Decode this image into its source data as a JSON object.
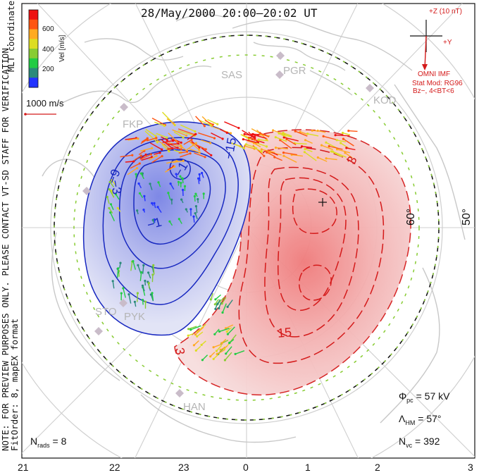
{
  "title": "28/May/2000 20:00–20:02 UT",
  "colorbar": {
    "ticks": [
      "600",
      "400",
      "200"
    ],
    "label": "Vel [m/s]",
    "colors": [
      "#2233ff",
      "#2a8a7a",
      "#22cc44",
      "#88cc33",
      "#dddd22",
      "#ffaa22",
      "#ff5511",
      "#ee1111"
    ]
  },
  "coord_note": "MLT coordinates",
  "scale_vector": "1000 m/s",
  "imf": {
    "z_label": "+Z (10 nT)",
    "y_label": "+Y",
    "source": "OMNI IMF",
    "model": "Stat Mod: RG96",
    "condition": "Bz−, 4<BT<6"
  },
  "left_notes": {
    "preview": "NOTE: FOR PREVIEW PURPOSES ONLY. PLEASE CONTACT VT-SD STAFF FOR VERIFICATION.",
    "fitorder": "FitOrder: 8, mapEX format"
  },
  "stations": [
    "SAS",
    "PGR",
    "KOD",
    "FKP",
    "STO",
    "PYK",
    "HAN"
  ],
  "latitude_labels": [
    "60°",
    "50°"
  ],
  "contour_labels": {
    "negative": [
      "−3",
      "−9",
      "−1",
      "−15",
      "−1"
    ],
    "positive": [
      "3",
      "15",
      "3"
    ]
  },
  "stats": {
    "phi_pc": "Φpc = 57 kV",
    "phi_pc_value": "57 kV",
    "lambda_hm_value": "57°",
    "n_vc_value": "392",
    "n_rads_value": "8"
  },
  "mlt_labels": [
    "21",
    "22",
    "23",
    "0",
    "1",
    "2",
    "3"
  ]
}
